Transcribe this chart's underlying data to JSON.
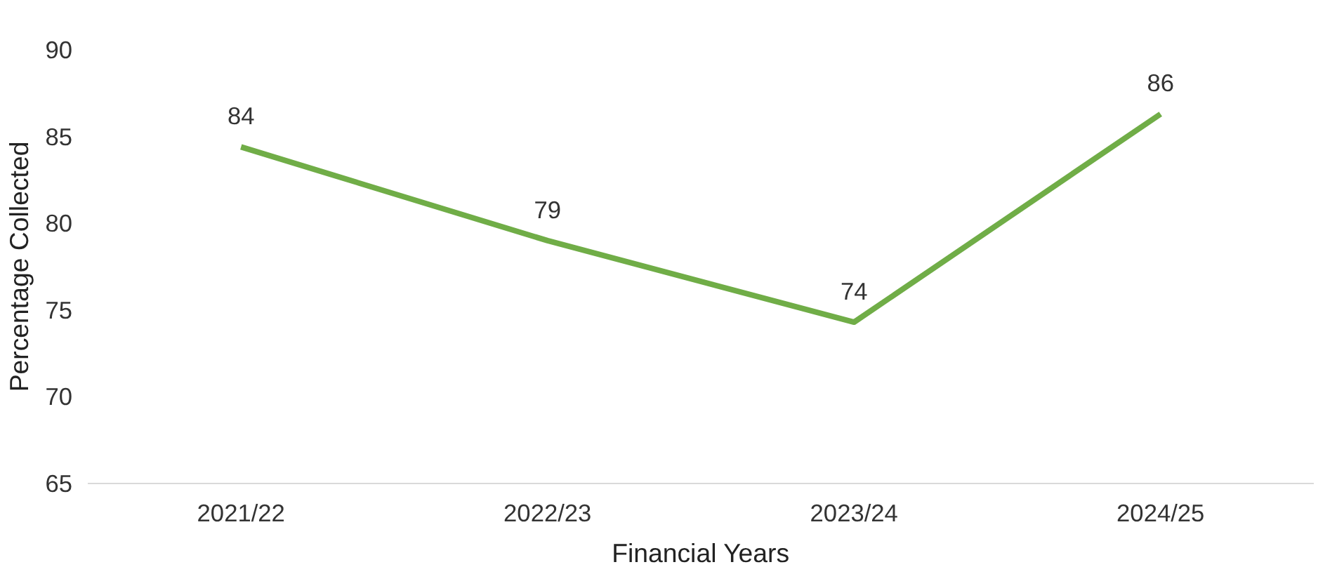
{
  "chart_data": {
    "type": "line",
    "xlabel": "Financial Years",
    "ylabel": "Percentage Collected",
    "categories": [
      "2021/22",
      "2022/23",
      "2023/24",
      "2024/25"
    ],
    "series": [
      {
        "color": "#70ad47",
        "values": [
          84.4,
          79.0,
          74.3,
          86.3
        ],
        "value_labels": [
          "84",
          "79",
          "74",
          "86"
        ]
      }
    ],
    "ylim": [
      65,
      90
    ],
    "yticks": [
      65,
      70,
      75,
      80,
      85,
      90
    ],
    "marker": "none",
    "line_style": "solid"
  }
}
